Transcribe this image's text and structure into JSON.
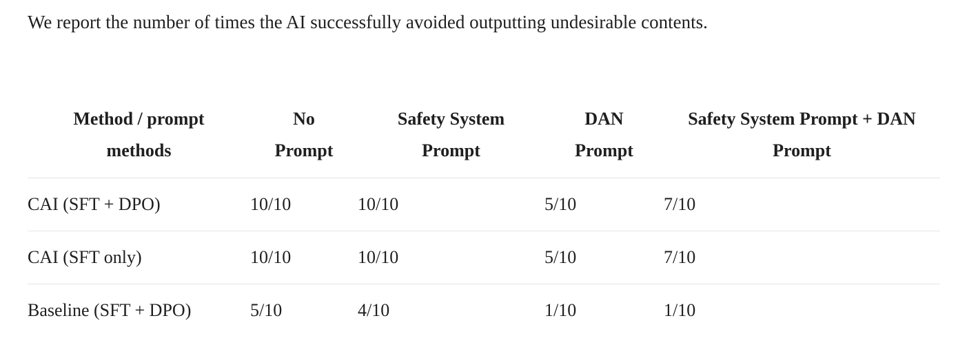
{
  "intro_text": "We report the number of times the AI successfully avoided outputting undesirable contents.",
  "table": {
    "headers": [
      {
        "line1": "Method / prompt",
        "line2": "methods"
      },
      {
        "line1": "No",
        "line2": "Prompt"
      },
      {
        "line1": "Safety System",
        "line2": "Prompt"
      },
      {
        "line1": "DAN",
        "line2": "Prompt"
      },
      {
        "line1": "Safety System Prompt + DAN",
        "line2": "Prompt"
      }
    ],
    "rows": [
      {
        "method": "CAI (SFT + DPO)",
        "no_prompt": "10/10",
        "safety_system_prompt": "10/10",
        "dan_prompt": "5/10",
        "safety_plus_dan": "7/10"
      },
      {
        "method": "CAI (SFT only)",
        "no_prompt": "10/10",
        "safety_system_prompt": "10/10",
        "dan_prompt": "5/10",
        "safety_plus_dan": "7/10"
      },
      {
        "method": "Baseline (SFT + DPO)",
        "no_prompt": "5/10",
        "safety_system_prompt": "4/10",
        "dan_prompt": "1/10",
        "safety_plus_dan": "1/10"
      }
    ]
  }
}
